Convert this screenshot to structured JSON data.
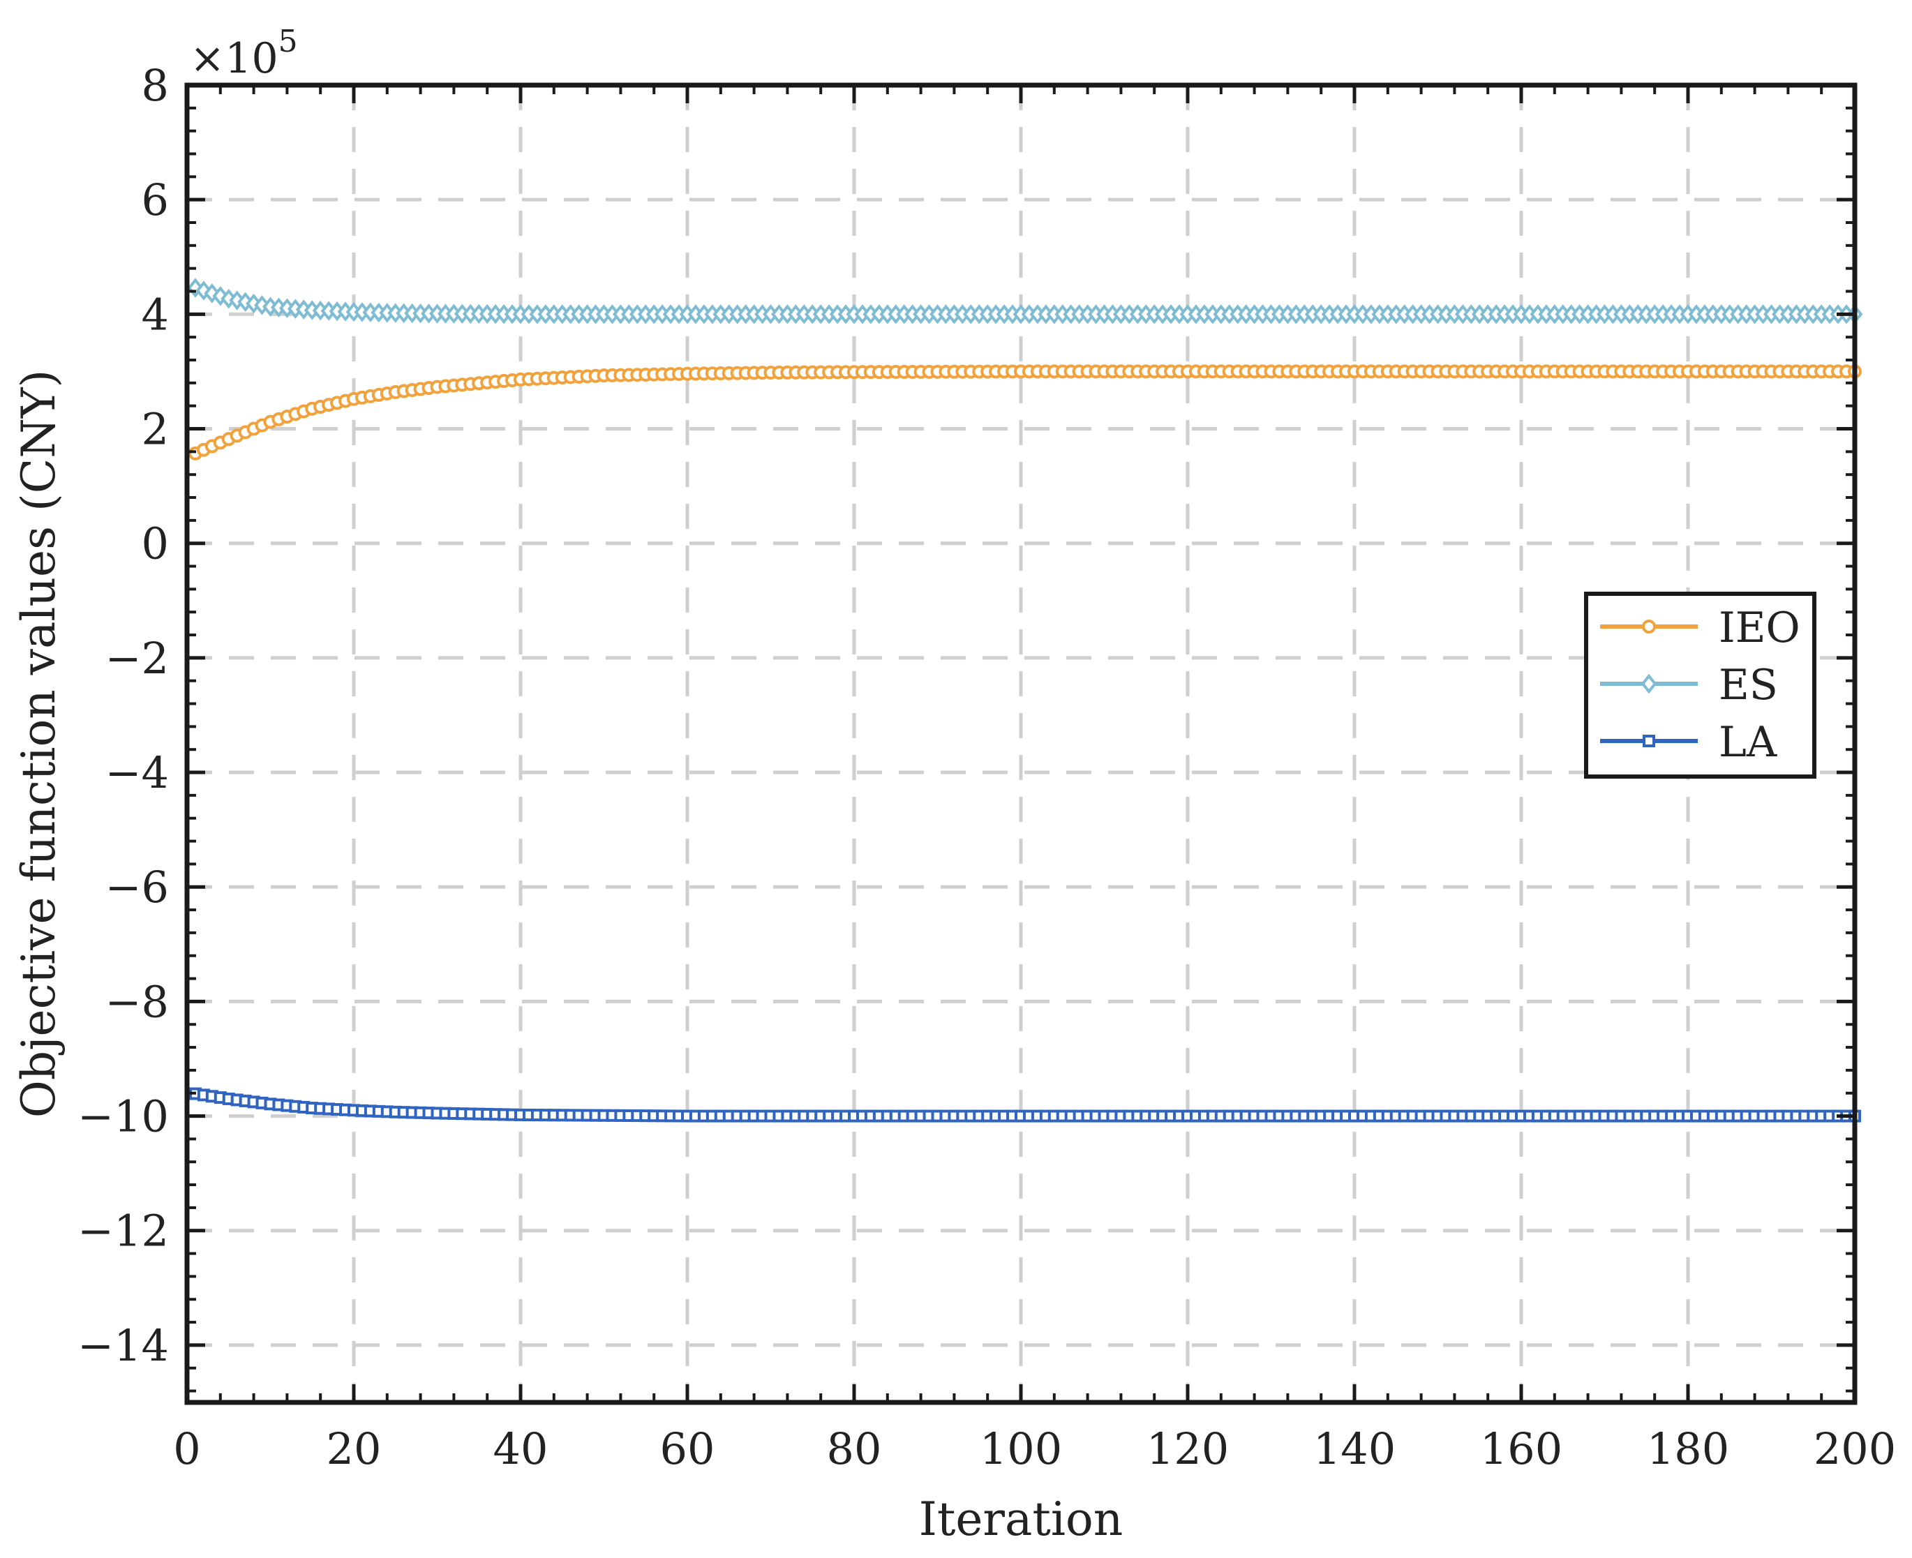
{
  "chart_data": {
    "type": "line",
    "title": "",
    "xlabel": "Iteration",
    "ylabel": "Objective function values (CNY)",
    "y_multiplier_label": "×10",
    "y_multiplier_exponent": "5",
    "xlim": [
      0,
      200
    ],
    "ylim": [
      -15,
      8
    ],
    "x_ticks": [
      0,
      20,
      40,
      60,
      80,
      100,
      120,
      140,
      160,
      180,
      200
    ],
    "x_tick_labels": [
      "0",
      "20",
      "40",
      "60",
      "80",
      "100",
      "120",
      "140",
      "160",
      "180",
      "200"
    ],
    "y_ticks": [
      8,
      6,
      4,
      2,
      0,
      -2,
      -4,
      -6,
      -8,
      -10,
      -12,
      -14
    ],
    "y_tick_labels": [
      "8",
      "6",
      "4",
      "2",
      "0",
      "−2",
      "−4",
      "−6",
      "−8",
      "−10",
      "−12",
      "−14"
    ],
    "grid": true,
    "legend_position": "right",
    "series": [
      {
        "name": "IEO",
        "color": "#F2A23C",
        "marker": "circle",
        "model": "y = 3.0 - 1.45*exp(-x/17)",
        "x": [
          1,
          5,
          10,
          15,
          20,
          25,
          30,
          40,
          50,
          60,
          70,
          80,
          100,
          120,
          140,
          160,
          180,
          200
        ],
        "values": [
          1.57,
          1.82,
          2.12,
          2.35,
          2.52,
          2.64,
          2.73,
          2.86,
          2.93,
          2.96,
          2.98,
          2.99,
          3.0,
          3.0,
          3.0,
          3.0,
          3.0,
          3.0
        ]
      },
      {
        "name": "ES",
        "color": "#7EBCD4",
        "marker": "diamond",
        "model": "y = 4.0 + 0.47*exp(-x/8)",
        "x": [
          1,
          5,
          10,
          15,
          20,
          25,
          30,
          40,
          50,
          60,
          80,
          100,
          120,
          140,
          160,
          180,
          200
        ],
        "values": [
          4.46,
          4.27,
          4.13,
          4.07,
          4.04,
          4.02,
          4.01,
          4.0,
          4.0,
          4.0,
          4.0,
          4.0,
          4.0,
          4.0,
          4.0,
          4.0,
          4.0
        ]
      },
      {
        "name": "LA",
        "color": "#2F64C0",
        "marker": "square",
        "model": "y = -10.0 + 0.42*exp(-x/14)",
        "x": [
          1,
          5,
          10,
          15,
          20,
          25,
          30,
          40,
          50,
          60,
          80,
          100,
          120,
          140,
          160,
          180,
          200
        ],
        "values": [
          -9.61,
          -9.7,
          -9.79,
          -9.86,
          -9.9,
          -9.93,
          -9.95,
          -9.98,
          -9.99,
          -10.0,
          -10.0,
          -10.0,
          -10.0,
          -10.0,
          -10.0,
          -10.0,
          -10.0
        ]
      }
    ]
  }
}
